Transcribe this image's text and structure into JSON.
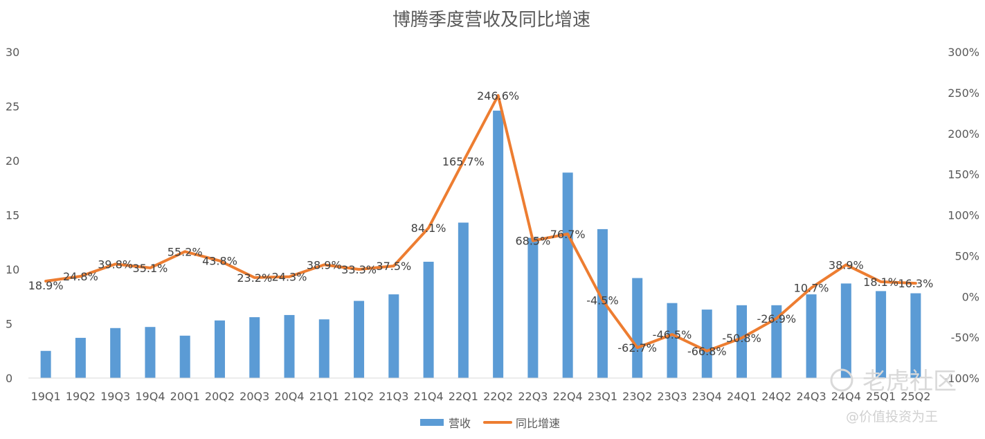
{
  "chart_data": {
    "type": "bar+line",
    "title": "博腾季度营收及同比增速",
    "categories": [
      "19Q1",
      "19Q2",
      "19Q3",
      "19Q4",
      "20Q1",
      "20Q2",
      "20Q3",
      "20Q4",
      "21Q1",
      "21Q2",
      "21Q3",
      "21Q4",
      "22Q1",
      "22Q2",
      "22Q3",
      "22Q4",
      "23Q1",
      "23Q2",
      "23Q3",
      "23Q4",
      "24Q1",
      "24Q2",
      "24Q3",
      "24Q4",
      "25Q1",
      "25Q2"
    ],
    "series": [
      {
        "name": "营收",
        "type": "bar",
        "axis": "left",
        "color": "#5b9bd5",
        "values": [
          2.5,
          3.7,
          4.6,
          4.7,
          3.9,
          5.3,
          5.6,
          5.8,
          5.4,
          7.1,
          7.7,
          10.7,
          14.3,
          24.6,
          12.9,
          18.9,
          13.7,
          9.2,
          6.9,
          6.3,
          6.7,
          6.7,
          7.7,
          8.7,
          8.0,
          7.8
        ]
      },
      {
        "name": "同比增速",
        "type": "line",
        "axis": "right",
        "color": "#ed7d31",
        "values": [
          18.9,
          24.8,
          39.8,
          35.1,
          55.2,
          43.8,
          23.2,
          24.3,
          38.9,
          33.3,
          37.5,
          84.1,
          165.7,
          246.6,
          68.5,
          76.7,
          -4.5,
          -62.7,
          -46.5,
          -66.8,
          -50.8,
          -26.9,
          10.7,
          38.9,
          18.1,
          16.3
        ],
        "labels": [
          "18.9%",
          "24.8%",
          "39.8%",
          "35.1%",
          "55.2%",
          "43.8%",
          "23.2%",
          "24.3%",
          "38.9%",
          "33.3%",
          "37.5%",
          "84.1%",
          "165.7%",
          "246.6%",
          "68.5%",
          "76.7%",
          "-4.5%",
          "-62.7%",
          "-46.5%",
          "-66.8%",
          "-50.8%",
          "-26.9%",
          "10.7%",
          "38.9%",
          "18.1%",
          "16.3%"
        ]
      }
    ],
    "y_left": {
      "min": 0,
      "max": 30,
      "ticks": [
        "0",
        "5",
        "10",
        "15",
        "20",
        "25",
        "30"
      ]
    },
    "y_right": {
      "min": -100,
      "max": 300,
      "ticks": [
        "-100%",
        "-50%",
        "0%",
        "50%",
        "100%",
        "150%",
        "200%",
        "250%",
        "300%"
      ]
    },
    "grid": false,
    "legend_position": "bottom"
  },
  "watermark": {
    "brand": "老虎社区",
    "author": "@价值投资为王"
  }
}
